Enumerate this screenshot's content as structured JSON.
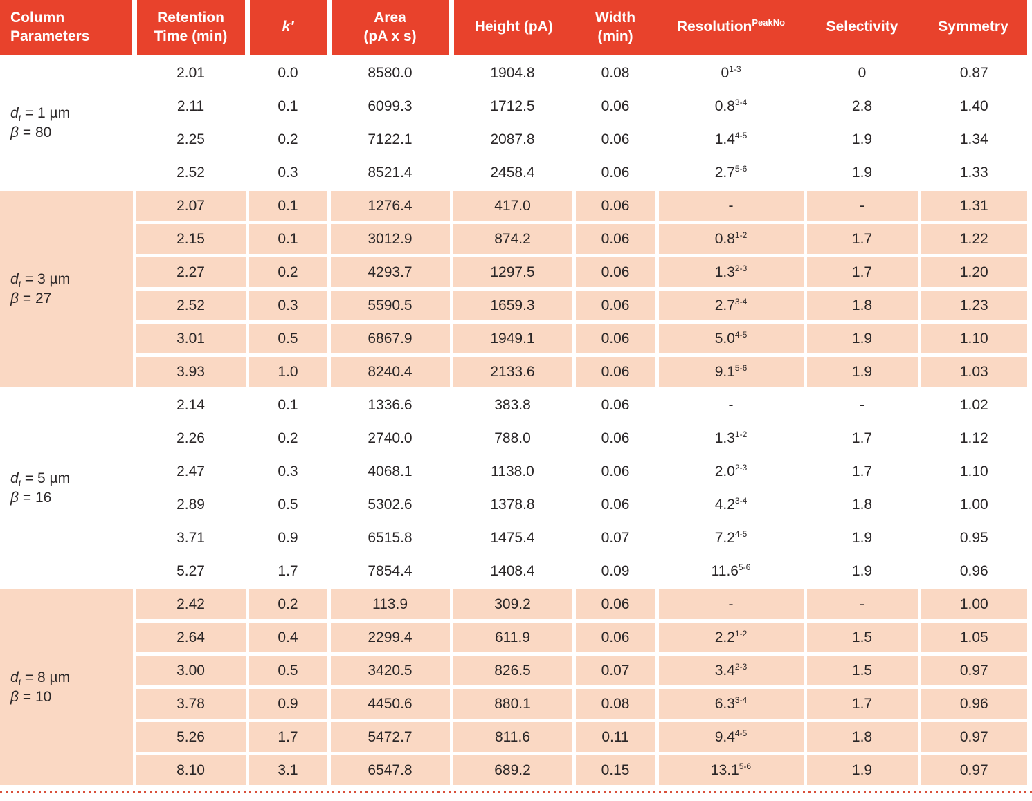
{
  "colors": {
    "header_bg": "#E8422C",
    "header_text": "#FFFFFF",
    "shaded_row_bg": "#FAD8C3",
    "body_text": "#2A2627",
    "grid_line": "#FFFFFF",
    "dotted_divider": "#D9503B"
  },
  "table": {
    "columns": [
      {
        "id": "param",
        "label": "Column\nParameters",
        "sup": "",
        "italic": false
      },
      {
        "id": "rt",
        "label": "Retention\nTime (min)",
        "sup": "",
        "italic": false
      },
      {
        "id": "k",
        "label": "k′",
        "sup": "",
        "italic": true
      },
      {
        "id": "area",
        "label": "Area\n(pA x s)",
        "sup": "",
        "italic": false
      },
      {
        "id": "height",
        "label": "Height (pA)",
        "sup": "",
        "italic": false
      },
      {
        "id": "width",
        "label": "Width\n(min)",
        "sup": "",
        "italic": false
      },
      {
        "id": "resolution",
        "label": "Resolution",
        "sup": "PeakNo",
        "italic": false
      },
      {
        "id": "selectivity",
        "label": "Selectivity",
        "sup": "",
        "italic": false
      },
      {
        "id": "symmetry",
        "label": "Symmetry",
        "sup": "",
        "italic": false
      }
    ],
    "groups": [
      {
        "shaded": false,
        "label": {
          "line1": {
            "base": "d",
            "sub": "f",
            "rest": "= 1 µm"
          },
          "line2": {
            "base": "β",
            "sub": "",
            "rest": "= 80"
          }
        },
        "rows": [
          {
            "rt": "2.01",
            "k": "0.0",
            "area": "8580.0",
            "height": "1904.8",
            "width": "0.08",
            "res": "0",
            "res_peaks": "1-3",
            "sel": "0",
            "sym": "0.87"
          },
          {
            "rt": "2.11",
            "k": "0.1",
            "area": "6099.3",
            "height": "1712.5",
            "width": "0.06",
            "res": "0.8",
            "res_peaks": "3-4",
            "sel": "2.8",
            "sym": "1.40"
          },
          {
            "rt": "2.25",
            "k": "0.2",
            "area": "7122.1",
            "height": "2087.8",
            "width": "0.06",
            "res": "1.4",
            "res_peaks": "4-5",
            "sel": "1.9",
            "sym": "1.34"
          },
          {
            "rt": "2.52",
            "k": "0.3",
            "area": "8521.4",
            "height": "2458.4",
            "width": "0.06",
            "res": "2.7",
            "res_peaks": "5-6",
            "sel": "1.9",
            "sym": "1.33"
          }
        ]
      },
      {
        "shaded": true,
        "label": {
          "line1": {
            "base": "d",
            "sub": "f",
            "rest": "= 3 µm"
          },
          "line2": {
            "base": "β",
            "sub": "",
            "rest": "= 27"
          }
        },
        "rows": [
          {
            "rt": "2.07",
            "k": "0.1",
            "area": "1276.4",
            "height": "417.0",
            "width": "0.06",
            "res": "-",
            "res_peaks": "",
            "sel": "-",
            "sym": "1.31"
          },
          {
            "rt": "2.15",
            "k": "0.1",
            "area": "3012.9",
            "height": "874.2",
            "width": "0.06",
            "res": "0.8",
            "res_peaks": "1-2",
            "sel": "1.7",
            "sym": "1.22"
          },
          {
            "rt": "2.27",
            "k": "0.2",
            "area": "4293.7",
            "height": "1297.5",
            "width": "0.06",
            "res": "1.3",
            "res_peaks": "2-3",
            "sel": "1.7",
            "sym": "1.20"
          },
          {
            "rt": "2.52",
            "k": "0.3",
            "area": "5590.5",
            "height": "1659.3",
            "width": "0.06",
            "res": "2.7",
            "res_peaks": "3-4",
            "sel": "1.8",
            "sym": "1.23"
          },
          {
            "rt": "3.01",
            "k": "0.5",
            "area": "6867.9",
            "height": "1949.1",
            "width": "0.06",
            "res": "5.0",
            "res_peaks": "4-5",
            "sel": "1.9",
            "sym": "1.10"
          },
          {
            "rt": "3.93",
            "k": "1.0",
            "area": "8240.4",
            "height": "2133.6",
            "width": "0.06",
            "res": "9.1",
            "res_peaks": "5-6",
            "sel": "1.9",
            "sym": "1.03"
          }
        ]
      },
      {
        "shaded": false,
        "label": {
          "line1": {
            "base": "d",
            "sub": "f",
            "rest": "= 5 µm"
          },
          "line2": {
            "base": "β",
            "sub": "",
            "rest": "= 16"
          }
        },
        "rows": [
          {
            "rt": "2.14",
            "k": "0.1",
            "area": "1336.6",
            "height": "383.8",
            "width": "0.06",
            "res": "-",
            "res_peaks": "",
            "sel": "-",
            "sym": "1.02"
          },
          {
            "rt": "2.26",
            "k": "0.2",
            "area": "2740.0",
            "height": "788.0",
            "width": "0.06",
            "res": "1.3",
            "res_peaks": "1-2",
            "sel": "1.7",
            "sym": "1.12"
          },
          {
            "rt": "2.47",
            "k": "0.3",
            "area": "4068.1",
            "height": "1138.0",
            "width": "0.06",
            "res": "2.0",
            "res_peaks": "2-3",
            "sel": "1.7",
            "sym": "1.10"
          },
          {
            "rt": "2.89",
            "k": "0.5",
            "area": "5302.6",
            "height": "1378.8",
            "width": "0.06",
            "res": "4.2",
            "res_peaks": "3-4",
            "sel": "1.8",
            "sym": "1.00"
          },
          {
            "rt": "3.71",
            "k": "0.9",
            "area": "6515.8",
            "height": "1475.4",
            "width": "0.07",
            "res": "7.2",
            "res_peaks": "4-5",
            "sel": "1.9",
            "sym": "0.95"
          },
          {
            "rt": "5.27",
            "k": "1.7",
            "area": "7854.4",
            "height": "1408.4",
            "width": "0.09",
            "res": "11.6",
            "res_peaks": "5-6",
            "sel": "1.9",
            "sym": "0.96"
          }
        ]
      },
      {
        "shaded": true,
        "label": {
          "line1": {
            "base": "d",
            "sub": "f",
            "rest": "= 8 µm"
          },
          "line2": {
            "base": "β",
            "sub": "",
            "rest": "= 10"
          }
        },
        "rows": [
          {
            "rt": "2.42",
            "k": "0.2",
            "area": "113.9",
            "height": "309.2",
            "width": "0.06",
            "res": "-",
            "res_peaks": "",
            "sel": "-",
            "sym": "1.00"
          },
          {
            "rt": "2.64",
            "k": "0.4",
            "area": "2299.4",
            "height": "611.9",
            "width": "0.06",
            "res": "2.2",
            "res_peaks": "1-2",
            "sel": "1.5",
            "sym": "1.05"
          },
          {
            "rt": "3.00",
            "k": "0.5",
            "area": "3420.5",
            "height": "826.5",
            "width": "0.07",
            "res": "3.4",
            "res_peaks": "2-3",
            "sel": "1.5",
            "sym": "0.97"
          },
          {
            "rt": "3.78",
            "k": "0.9",
            "area": "4450.6",
            "height": "880.1",
            "width": "0.08",
            "res": "6.3",
            "res_peaks": "3-4",
            "sel": "1.7",
            "sym": "0.96"
          },
          {
            "rt": "5.26",
            "k": "1.7",
            "area": "5472.7",
            "height": "811.6",
            "width": "0.11",
            "res": "9.4",
            "res_peaks": "4-5",
            "sel": "1.8",
            "sym": "0.97"
          },
          {
            "rt": "8.10",
            "k": "3.1",
            "area": "6547.8",
            "height": "689.2",
            "width": "0.15",
            "res": "13.1",
            "res_peaks": "5-6",
            "sel": "1.9",
            "sym": "0.97"
          }
        ]
      }
    ]
  }
}
